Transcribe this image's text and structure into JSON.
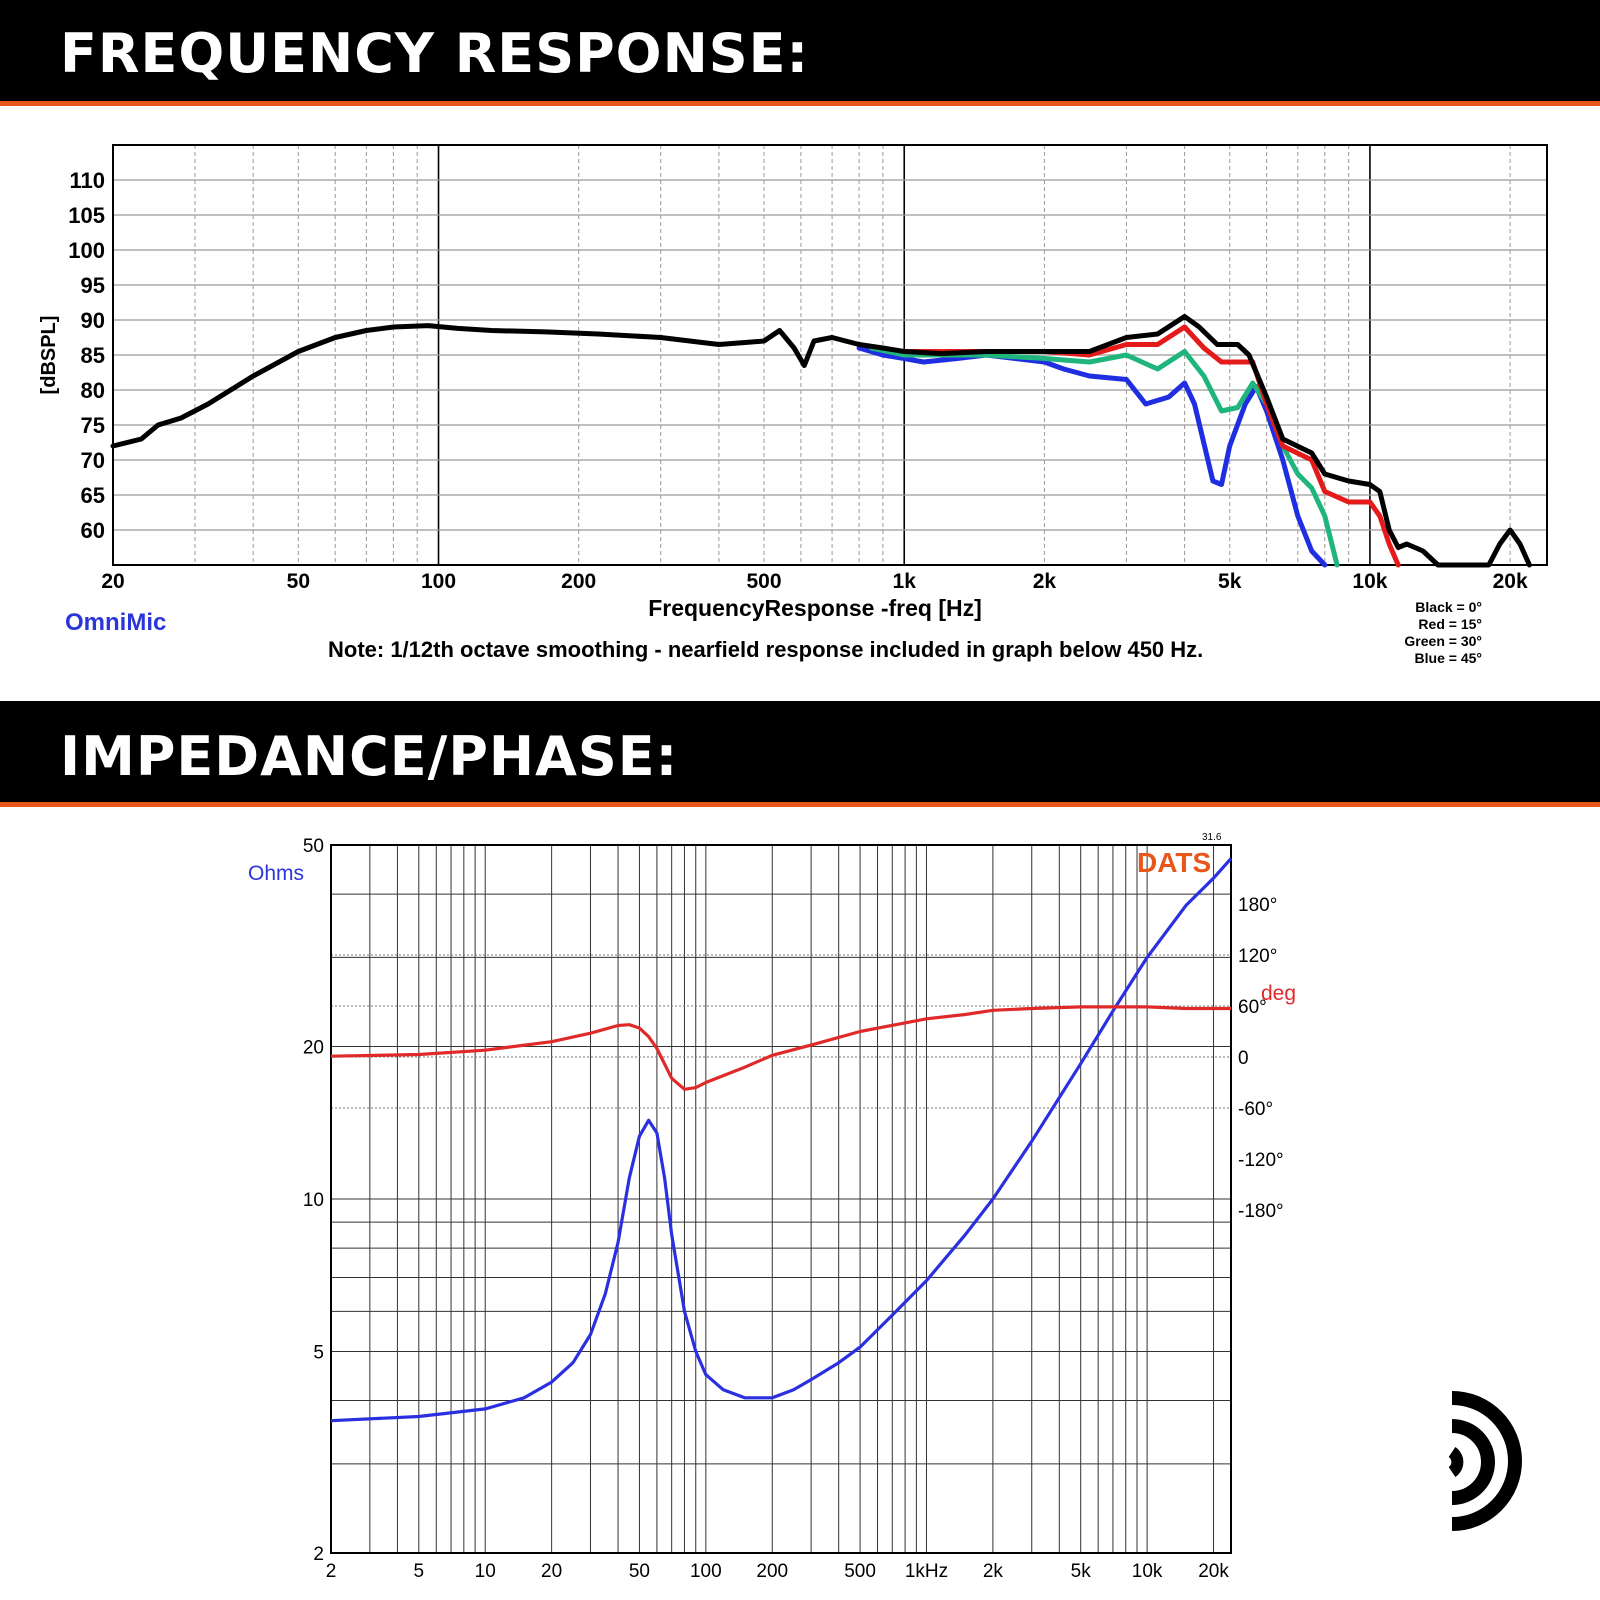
{
  "sections": {
    "frequency_title": "FREQUENCY RESPONSE:",
    "impedance_title": "IMPEDANCE/PHASE:"
  },
  "colors": {
    "accent": "#e8561c",
    "black": "#000000",
    "red": "#e51b1b",
    "green": "#1fb57d",
    "blue": "#1f2ee0",
    "imp_blue": "#2a2fe0",
    "phase_red": "#e02a2a",
    "dats_orange": "#e8561c"
  },
  "chart_data": [
    {
      "type": "line",
      "xscale": "log",
      "xlim": [
        20,
        24000
      ],
      "ylim": [
        55,
        115
      ],
      "ylabel": "[dBSPL]",
      "xlabel": "FrequencyResponse -freq [Hz]",
      "brand": "OmniMic",
      "note": "Note: 1/12th octave smoothing - nearfield response included in graph below 450 Hz.",
      "legend": [
        "Black = 0°",
        "Red = 15°",
        "Green = 30°",
        "Blue = 45°"
      ],
      "xticks": [
        {
          "v": 20,
          "label": "20"
        },
        {
          "v": 50,
          "label": "50"
        },
        {
          "v": 100,
          "label": "100"
        },
        {
          "v": 200,
          "label": "200"
        },
        {
          "v": 500,
          "label": "500"
        },
        {
          "v": 1000,
          "label": "1k"
        },
        {
          "v": 2000,
          "label": "2k"
        },
        {
          "v": 5000,
          "label": "5k"
        },
        {
          "v": 10000,
          "label": "10k"
        },
        {
          "v": 20000,
          "label": "20k"
        }
      ],
      "yticks": [
        60,
        65,
        70,
        75,
        80,
        85,
        90,
        95,
        100,
        105,
        110
      ],
      "grid": true,
      "series": [
        {
          "name": "Black = 0°",
          "color": "black",
          "points": [
            [
              20,
              72
            ],
            [
              23,
              73
            ],
            [
              25,
              75
            ],
            [
              28,
              76
            ],
            [
              32,
              78
            ],
            [
              40,
              82
            ],
            [
              50,
              85.5
            ],
            [
              60,
              87.5
            ],
            [
              70,
              88.5
            ],
            [
              80,
              89
            ],
            [
              95,
              89.2
            ],
            [
              110,
              88.8
            ],
            [
              130,
              88.5
            ],
            [
              170,
              88.3
            ],
            [
              220,
              88
            ],
            [
              300,
              87.5
            ],
            [
              400,
              86.5
            ],
            [
              500,
              87
            ],
            [
              540,
              88.5
            ],
            [
              580,
              86
            ],
            [
              610,
              83.5
            ],
            [
              640,
              87
            ],
            [
              700,
              87.5
            ],
            [
              800,
              86.5
            ],
            [
              900,
              86
            ],
            [
              1000,
              85.5
            ],
            [
              1200,
              85.2
            ],
            [
              1500,
              85.5
            ],
            [
              2000,
              85.5
            ],
            [
              2500,
              85.5
            ],
            [
              3000,
              87.5
            ],
            [
              3500,
              88
            ],
            [
              4000,
              90.5
            ],
            [
              4300,
              89
            ],
            [
              4700,
              86.5
            ],
            [
              5200,
              86.5
            ],
            [
              5500,
              85
            ],
            [
              6000,
              79
            ],
            [
              6500,
              73
            ],
            [
              7500,
              71
            ],
            [
              8000,
              68
            ],
            [
              9000,
              67
            ],
            [
              10000,
              66.5
            ],
            [
              10500,
              65.5
            ],
            [
              11000,
              60
            ],
            [
              11500,
              57.5
            ],
            [
              12000,
              58
            ],
            [
              13000,
              57
            ],
            [
              14000,
              55
            ],
            [
              18000,
              55
            ],
            [
              19000,
              58
            ],
            [
              20000,
              60
            ],
            [
              21000,
              58
            ],
            [
              22000,
              55
            ]
          ]
        },
        {
          "name": "Red = 15°",
          "color": "red",
          "points": [
            [
              1000,
              85.5
            ],
            [
              1500,
              85.5
            ],
            [
              2000,
              85.5
            ],
            [
              2500,
              85
            ],
            [
              3000,
              86.5
            ],
            [
              3500,
              86.5
            ],
            [
              4000,
              89
            ],
            [
              4400,
              86
            ],
            [
              4800,
              84
            ],
            [
              5200,
              84
            ],
            [
              5600,
              84
            ],
            [
              6000,
              78
            ],
            [
              6500,
              72
            ],
            [
              7500,
              70
            ],
            [
              8000,
              65.5
            ],
            [
              9000,
              64
            ],
            [
              10000,
              64
            ],
            [
              10500,
              62
            ],
            [
              11000,
              58
            ],
            [
              11500,
              55
            ]
          ]
        },
        {
          "name": "Green = 30°",
          "color": "green",
          "points": [
            [
              850,
              86
            ],
            [
              1000,
              85
            ],
            [
              1300,
              85
            ],
            [
              1500,
              85
            ],
            [
              2000,
              84.5
            ],
            [
              2500,
              84
            ],
            [
              3000,
              85
            ],
            [
              3500,
              83
            ],
            [
              4000,
              85.5
            ],
            [
              4400,
              82
            ],
            [
              4800,
              77
            ],
            [
              5200,
              77.5
            ],
            [
              5600,
              81
            ],
            [
              6000,
              78
            ],
            [
              6500,
              72
            ],
            [
              7000,
              68
            ],
            [
              7500,
              66
            ],
            [
              8000,
              62
            ],
            [
              8500,
              55
            ]
          ]
        },
        {
          "name": "Blue = 45°",
          "color": "blue",
          "points": [
            [
              800,
              86
            ],
            [
              900,
              85
            ],
            [
              1000,
              84.5
            ],
            [
              1100,
              84
            ],
            [
              1300,
              84.5
            ],
            [
              1500,
              85
            ],
            [
              2000,
              84
            ],
            [
              2200,
              83
            ],
            [
              2500,
              82
            ],
            [
              3000,
              81.5
            ],
            [
              3300,
              78
            ],
            [
              3700,
              79
            ],
            [
              4000,
              81
            ],
            [
              4200,
              78
            ],
            [
              4600,
              67
            ],
            [
              4800,
              66.5
            ],
            [
              5000,
              72
            ],
            [
              5400,
              78
            ],
            [
              5700,
              80.5
            ],
            [
              6000,
              77
            ],
            [
              6500,
              70
            ],
            [
              7000,
              62
            ],
            [
              7500,
              57
            ],
            [
              8000,
              55
            ]
          ]
        }
      ]
    },
    {
      "type": "line",
      "xscale": "log",
      "xlim": [
        2,
        24000
      ],
      "ylim": [
        2,
        50
      ],
      "yscale": "log",
      "ylabel": "Ohms",
      "y2label": "deg",
      "brand": "DATS",
      "corner_value": "31.6",
      "xticks": [
        {
          "v": 2,
          "label": "2"
        },
        {
          "v": 5,
          "label": "5"
        },
        {
          "v": 10,
          "label": "10"
        },
        {
          "v": 20,
          "label": "20"
        },
        {
          "v": 50,
          "label": "50"
        },
        {
          "v": 100,
          "label": "100"
        },
        {
          "v": 200,
          "label": "200"
        },
        {
          "v": 500,
          "label": "500"
        },
        {
          "v": 1000,
          "label": "1kHz"
        },
        {
          "v": 2000,
          "label": "2k"
        },
        {
          "v": 5000,
          "label": "5k"
        },
        {
          "v": 10000,
          "label": "10k"
        },
        {
          "v": 20000,
          "label": "20k"
        }
      ],
      "yticks": [
        {
          "v": 50,
          "label": "50"
        },
        {
          "v": 20,
          "label": "20"
        },
        {
          "v": 10,
          "label": "10"
        },
        {
          "v": 5,
          "label": "5"
        },
        {
          "v": 2,
          "label": "2"
        }
      ],
      "y2ticks": [
        {
          "v": 180,
          "label": "180°"
        },
        {
          "v": 120,
          "label": "120°"
        },
        {
          "v": 60,
          "label": "60°"
        },
        {
          "v": 0,
          "label": "0"
        },
        {
          "v": -60,
          "label": "-60°"
        },
        {
          "v": -120,
          "label": "-120°"
        },
        {
          "v": -180,
          "label": "-180°"
        }
      ],
      "y2lim": [
        -180,
        180
      ],
      "grid": true,
      "series": [
        {
          "name": "impedance",
          "axis": "left",
          "color": "imp_blue",
          "points": [
            [
              2,
              3.65
            ],
            [
              5,
              3.72
            ],
            [
              10,
              3.85
            ],
            [
              15,
              4.05
            ],
            [
              20,
              4.35
            ],
            [
              25,
              4.75
            ],
            [
              30,
              5.4
            ],
            [
              35,
              6.5
            ],
            [
              40,
              8.2
            ],
            [
              45,
              11.0
            ],
            [
              50,
              13.3
            ],
            [
              55,
              14.3
            ],
            [
              60,
              13.5
            ],
            [
              65,
              11.0
            ],
            [
              70,
              8.5
            ],
            [
              80,
              6.0
            ],
            [
              90,
              5.0
            ],
            [
              100,
              4.5
            ],
            [
              120,
              4.2
            ],
            [
              150,
              4.05
            ],
            [
              200,
              4.05
            ],
            [
              250,
              4.2
            ],
            [
              300,
              4.4
            ],
            [
              400,
              4.75
            ],
            [
              500,
              5.1
            ],
            [
              700,
              5.9
            ],
            [
              1000,
              6.9
            ],
            [
              1500,
              8.5
            ],
            [
              2000,
              10.0
            ],
            [
              3000,
              13.0
            ],
            [
              5000,
              18.5
            ],
            [
              7000,
              23.5
            ],
            [
              10000,
              30
            ],
            [
              15000,
              38
            ],
            [
              20000,
              43
            ],
            [
              24000,
              47
            ]
          ]
        },
        {
          "name": "phase",
          "axis": "right",
          "color": "phase_red",
          "points": [
            [
              2,
              1
            ],
            [
              5,
              3
            ],
            [
              10,
              8
            ],
            [
              20,
              18
            ],
            [
              30,
              28
            ],
            [
              40,
              37
            ],
            [
              45,
              38
            ],
            [
              50,
              34
            ],
            [
              55,
              24
            ],
            [
              60,
              10
            ],
            [
              70,
              -25
            ],
            [
              80,
              -38
            ],
            [
              90,
              -36
            ],
            [
              100,
              -30
            ],
            [
              150,
              -12
            ],
            [
              200,
              2
            ],
            [
              300,
              14
            ],
            [
              500,
              30
            ],
            [
              1000,
              45
            ],
            [
              1500,
              50
            ],
            [
              2000,
              55
            ],
            [
              3000,
              57
            ],
            [
              5000,
              59
            ],
            [
              10000,
              59
            ],
            [
              15000,
              57
            ],
            [
              24000,
              57
            ]
          ]
        }
      ]
    }
  ]
}
